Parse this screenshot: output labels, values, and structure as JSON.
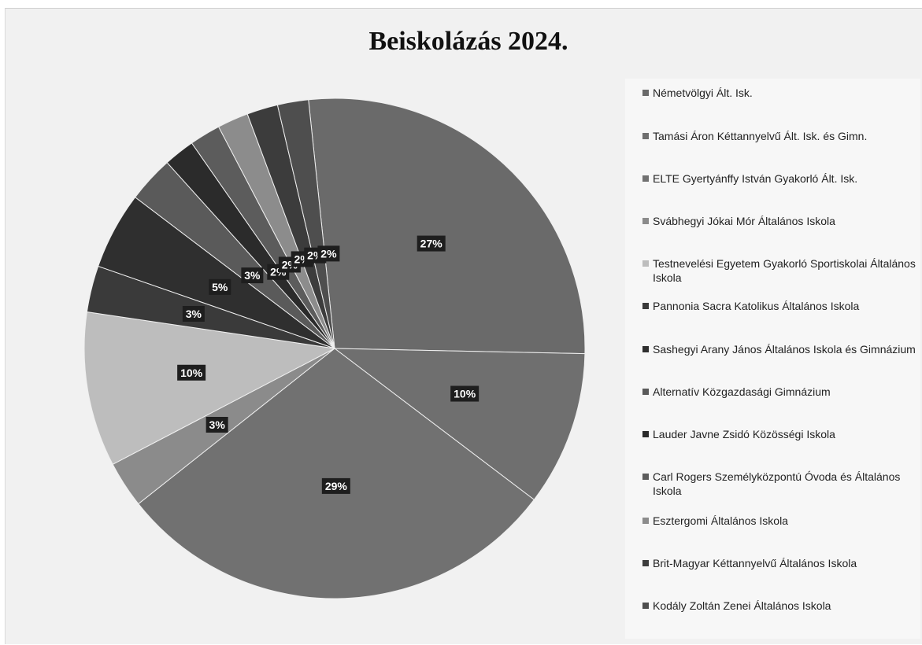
{
  "chart_data": {
    "type": "pie",
    "title": "Beiskolázás 2024.",
    "slices": [
      {
        "label": "Németvölgyi Ált. Isk.",
        "value": 27,
        "display": "27%",
        "color": "#6a6a6a"
      },
      {
        "label": "Tamási Áron Kéttannyelvű Ált. Isk. és Gimn.",
        "value": 10,
        "display": "10%",
        "color": "#6f6f6f"
      },
      {
        "label": "ELTE Gyertyánffy István Gyakorló Ált. Isk.",
        "value": 29,
        "display": "29%",
        "color": "#717171"
      },
      {
        "label": "Svábhegyi Jókai Mór Általános Iskola",
        "value": 3,
        "display": "3%",
        "color": "#8b8b8b"
      },
      {
        "label": "Testnevelési Egyetem Gyakorló Sportiskolai Általános Iskola",
        "value": 10,
        "display": "10%",
        "color": "#bdbdbd"
      },
      {
        "label": "Pannonia Sacra Katolikus Általános Iskola",
        "value": 3,
        "display": "3%",
        "color": "#3a3a3a"
      },
      {
        "label": "Sashegyi Arany János Általános Iskola és Gimnázium",
        "value": 5,
        "display": "5%",
        "color": "#2f2f2f"
      },
      {
        "label": "Alternatív Közgazdasági Gimnázium",
        "value": 3,
        "display": "3%",
        "color": "#5a5a5a"
      },
      {
        "label": "Lauder Javne Zsidó Közösségi Iskola",
        "value": 2,
        "display": "2%",
        "color": "#2b2b2b"
      },
      {
        "label": "Carl Rogers Személyközpontú Óvoda és Általános Iskola",
        "value": 2,
        "display": "2%",
        "color": "#5c5c5c"
      },
      {
        "label": "Esztergomi Általános Iskola",
        "value": 2,
        "display": "2%",
        "color": "#8c8c8c"
      },
      {
        "label": "Brit-Magyar Kéttannyelvű Általános Iskola",
        "value": 2,
        "display": "2%",
        "color": "#3c3c3c"
      },
      {
        "label": "Kodály Zoltán Zenei Általános Iskola",
        "value": 2,
        "display": "2%",
        "color": "#4e4e4e"
      }
    ],
    "legend_position": "right"
  }
}
